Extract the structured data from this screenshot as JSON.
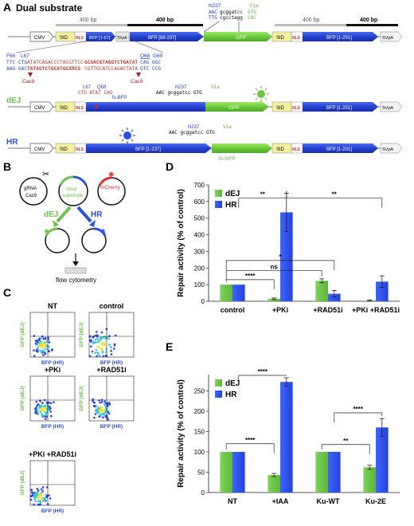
{
  "panelA": {
    "letter": "A",
    "title": "Dual substrate",
    "bp400": "400 bp",
    "bp400b": "400 bp",
    "bp400c": "400 bp",
    "bp400d": "400 bp",
    "n237": "N237",
    "n237_seq1": "AAC",
    "n237_seq2": "gcggatcc",
    "n237_seq3": "TTG",
    "n237_seq4": "cgcctagg",
    "v1a": "V1a",
    "v1a_seq1": "GTG",
    "v1a_seq2": "CAC",
    "cmv": "CMV",
    "std": "StD",
    "nls": "NLS",
    "bfp1": "BFP [1-67]",
    "tkpa": "TKpA",
    "bfp2": "BFP [68-237]",
    "gfp": "GFP",
    "bfp3": "BFP [1-201]",
    "svpa": "SVpA",
    "f66": "F66",
    "l67": "L67",
    "q68": "Q68",
    "g69": "G69",
    "seqTopL1": "TTC CTG",
    "seqTopL2": "ATATCAGACCCTACGTTCC",
    "seqTopR1": "GCAACGTAGGTCTGATAT",
    "seqTopR2": "CAG GGC",
    "seqBotL1": "AAG GAC",
    "seqBotL2": "TATAGTCTGCATGCAACG",
    "seqBotR1": "CGTTGCATCCAGACTATA",
    "seqBotR2": "GTC CCG",
    "cas9a": "Cas9",
    "cas9b": "Cas9",
    "dej": "dEJ",
    "dej_l67": "L67",
    "dej_q68": "Q68",
    "dej_seq": "CTG ATAT CAG",
    "fs_bfp": "fs-BFP",
    "dej_n237": "N237",
    "dej_v1a": "V1a",
    "dej_seq2": "AAC gcggatcc GTG",
    "hr": "HR",
    "hr_n237": "N237",
    "hr_v1a": "V1a",
    "hr_seq2": "AAC gcggatcc GTG",
    "bfp_full": "BFP [1-237]",
    "fs_gfp": "fs-GFP"
  },
  "panelB": {
    "letter": "B",
    "grna": "gRNA",
    "cas9": "Cas9",
    "dual": "dual",
    "substrate": "substrate",
    "mcherry": "mCherry",
    "dej": "dEJ",
    "hr": "HR",
    "flow": "flow cytometry"
  },
  "panelC": {
    "letter": "C",
    "plots": [
      {
        "label": "NT"
      },
      {
        "label": "control"
      },
      {
        "label": "+PKi"
      },
      {
        "label": "+RAD51i"
      },
      {
        "label": "+PKi +RAD51i"
      }
    ],
    "ylab": "GFP (dEJ)",
    "xlab": "BFP (HR)"
  },
  "colors": {
    "dej": "#6cc24a",
    "hr": "#2b50e6",
    "bfp": "#2b45d8",
    "gfp": "#72d33a",
    "red": "#c0302a",
    "std": "#f5f0a0"
  },
  "panelD": {
    "letter": "D",
    "chart_data": {
      "type": "bar",
      "categories": [
        "control",
        "+PKi",
        "+RAD51i",
        "+PKi +RAD51i"
      ],
      "series": [
        {
          "name": "dEJ",
          "values": [
            100,
            15,
            123,
            5
          ],
          "errors": [
            0,
            5,
            12,
            3
          ]
        },
        {
          "name": "HR",
          "values": [
            100,
            535,
            45,
            118
          ],
          "errors": [
            0,
            115,
            20,
            35
          ]
        }
      ],
      "ylabel": "Repair activity (% of control)",
      "ylim": [
        0,
        700
      ],
      "yticks": [
        0,
        100,
        200,
        300,
        400,
        500,
        600,
        700
      ],
      "legend": "top-left",
      "significance": [
        "**",
        "**",
        "*",
        "ns",
        "****"
      ]
    }
  },
  "panelE": {
    "letter": "E",
    "chart_data": {
      "type": "bar",
      "categories": [
        "NT",
        "+IAA",
        "Ku-WT",
        "Ku-2E"
      ],
      "series": [
        {
          "name": "dEJ",
          "values": [
            100,
            43,
            100,
            62
          ],
          "errors": [
            0,
            4,
            0,
            5
          ]
        },
        {
          "name": "HR",
          "values": [
            100,
            272,
            100,
            160
          ],
          "errors": [
            0,
            10,
            0,
            22
          ]
        }
      ],
      "ylabel": "Repair activity (% of control)",
      "ylim": [
        0,
        290
      ],
      "yticks": [
        0,
        50,
        100,
        150,
        200,
        250
      ],
      "legend": "top-left",
      "significance": [
        "****",
        "****",
        "****",
        "**"
      ]
    }
  }
}
